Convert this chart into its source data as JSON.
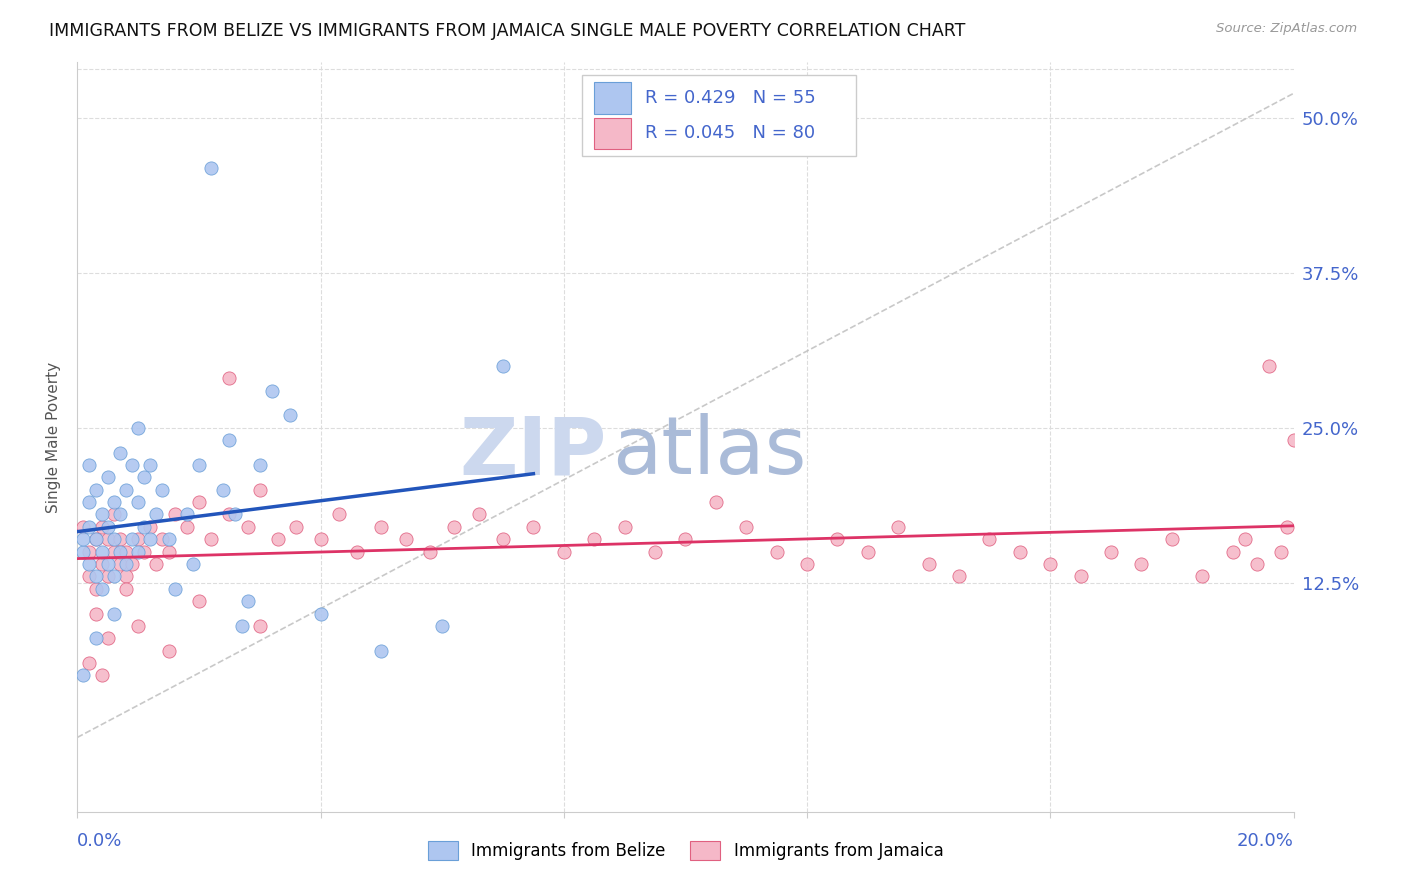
{
  "title": "IMMIGRANTS FROM BELIZE VS IMMIGRANTS FROM JAMAICA SINGLE MALE POVERTY CORRELATION CHART",
  "source": "Source: ZipAtlas.com",
  "ylabel": "Single Male Poverty",
  "ytick_labels": [
    "50.0%",
    "37.5%",
    "25.0%",
    "12.5%"
  ],
  "ytick_values": [
    0.5,
    0.375,
    0.25,
    0.125
  ],
  "xmin": 0.0,
  "xmax": 0.2,
  "ymin": -0.06,
  "ymax": 0.545,
  "belize_color": "#aec6f0",
  "belize_edge_color": "#6a9fd8",
  "jamaica_color": "#f5b8c8",
  "jamaica_edge_color": "#e06080",
  "trend_belize_color": "#2255bb",
  "trend_jamaica_color": "#dd3366",
  "diag_color": "#bbbbbb",
  "watermark_zip_color": "#ccd8ee",
  "watermark_atlas_color": "#aabbd8",
  "title_color": "#111111",
  "axis_label_color": "#4466cc",
  "grid_color": "#dddddd",
  "background_color": "#ffffff",
  "legend_box_color": "#ffffff",
  "legend_border_color": "#cccccc",
  "belize_x": [
    0.001,
    0.001,
    0.001,
    0.002,
    0.002,
    0.002,
    0.002,
    0.003,
    0.003,
    0.003,
    0.003,
    0.004,
    0.004,
    0.004,
    0.005,
    0.005,
    0.005,
    0.006,
    0.006,
    0.006,
    0.006,
    0.007,
    0.007,
    0.007,
    0.008,
    0.008,
    0.009,
    0.009,
    0.01,
    0.01,
    0.01,
    0.011,
    0.011,
    0.012,
    0.012,
    0.013,
    0.014,
    0.015,
    0.016,
    0.018,
    0.019,
    0.02,
    0.022,
    0.024,
    0.025,
    0.026,
    0.027,
    0.028,
    0.03,
    0.032,
    0.035,
    0.04,
    0.05,
    0.06,
    0.07
  ],
  "belize_y": [
    0.15,
    0.16,
    0.05,
    0.14,
    0.17,
    0.19,
    0.22,
    0.13,
    0.16,
    0.2,
    0.08,
    0.15,
    0.18,
    0.12,
    0.14,
    0.17,
    0.21,
    0.13,
    0.16,
    0.19,
    0.1,
    0.15,
    0.18,
    0.23,
    0.14,
    0.2,
    0.16,
    0.22,
    0.15,
    0.19,
    0.25,
    0.17,
    0.21,
    0.16,
    0.22,
    0.18,
    0.2,
    0.16,
    0.12,
    0.18,
    0.14,
    0.22,
    0.46,
    0.2,
    0.24,
    0.18,
    0.09,
    0.11,
    0.22,
    0.28,
    0.26,
    0.1,
    0.07,
    0.09,
    0.3
  ],
  "jamaica_x": [
    0.001,
    0.002,
    0.002,
    0.003,
    0.003,
    0.004,
    0.004,
    0.005,
    0.005,
    0.006,
    0.006,
    0.007,
    0.007,
    0.008,
    0.008,
    0.009,
    0.01,
    0.011,
    0.012,
    0.013,
    0.014,
    0.015,
    0.016,
    0.018,
    0.02,
    0.022,
    0.025,
    0.028,
    0.03,
    0.033,
    0.036,
    0.04,
    0.043,
    0.046,
    0.05,
    0.054,
    0.058,
    0.062,
    0.066,
    0.07,
    0.075,
    0.08,
    0.085,
    0.09,
    0.095,
    0.1,
    0.105,
    0.11,
    0.115,
    0.12,
    0.125,
    0.13,
    0.135,
    0.14,
    0.145,
    0.15,
    0.155,
    0.16,
    0.165,
    0.17,
    0.175,
    0.18,
    0.185,
    0.19,
    0.192,
    0.194,
    0.196,
    0.198,
    0.199,
    0.2,
    0.003,
    0.005,
    0.008,
    0.01,
    0.015,
    0.02,
    0.025,
    0.03,
    0.002,
    0.004
  ],
  "jamaica_y": [
    0.17,
    0.15,
    0.13,
    0.16,
    0.12,
    0.14,
    0.17,
    0.13,
    0.16,
    0.15,
    0.18,
    0.14,
    0.16,
    0.13,
    0.15,
    0.14,
    0.16,
    0.15,
    0.17,
    0.14,
    0.16,
    0.15,
    0.18,
    0.17,
    0.19,
    0.16,
    0.18,
    0.17,
    0.2,
    0.16,
    0.17,
    0.16,
    0.18,
    0.15,
    0.17,
    0.16,
    0.15,
    0.17,
    0.18,
    0.16,
    0.17,
    0.15,
    0.16,
    0.17,
    0.15,
    0.16,
    0.19,
    0.17,
    0.15,
    0.14,
    0.16,
    0.15,
    0.17,
    0.14,
    0.13,
    0.16,
    0.15,
    0.14,
    0.13,
    0.15,
    0.14,
    0.16,
    0.13,
    0.15,
    0.16,
    0.14,
    0.3,
    0.15,
    0.17,
    0.24,
    0.1,
    0.08,
    0.12,
    0.09,
    0.07,
    0.11,
    0.29,
    0.09,
    0.06,
    0.05
  ],
  "xtick_positions": [
    0.0,
    0.04,
    0.08,
    0.12,
    0.16,
    0.2
  ]
}
